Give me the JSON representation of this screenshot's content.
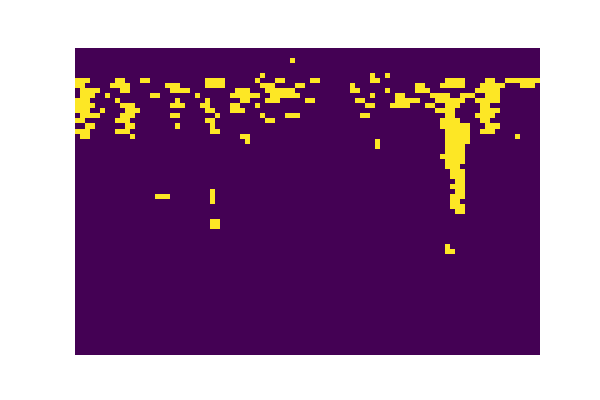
{
  "chart_data": {
    "type": "heatmap",
    "tick_labels": false,
    "xlim": [
      0,
      93
    ],
    "ylim": [
      0,
      61
    ],
    "zlim": [
      0,
      1
    ],
    "colors": [
      "#440154",
      "#fde725"
    ],
    "runs": [
      [
        2,
        43,
        44,
        1
      ],
      [
        5,
        37,
        38,
        1
      ],
      [
        5,
        59,
        60,
        1
      ],
      [
        5,
        62,
        63,
        1
      ],
      [
        6,
        0,
        3,
        1
      ],
      [
        6,
        8,
        10,
        1
      ],
      [
        6,
        13,
        15,
        1
      ],
      [
        6,
        26,
        30,
        1
      ],
      [
        6,
        36,
        37,
        1
      ],
      [
        6,
        40,
        42,
        1
      ],
      [
        6,
        47,
        49,
        1
      ],
      [
        6,
        59,
        61,
        1
      ],
      [
        6,
        74,
        78,
        1
      ],
      [
        6,
        82,
        84,
        1
      ],
      [
        6,
        86,
        93,
        1
      ],
      [
        7,
        0,
        2,
        1
      ],
      [
        7,
        7,
        11,
        1
      ],
      [
        7,
        18,
        21,
        1
      ],
      [
        7,
        26,
        30,
        1
      ],
      [
        7,
        37,
        40,
        1
      ],
      [
        7,
        44,
        46,
        1
      ],
      [
        7,
        55,
        56,
        1
      ],
      [
        7,
        68,
        70,
        1
      ],
      [
        7,
        73,
        78,
        1
      ],
      [
        7,
        81,
        86,
        1
      ],
      [
        7,
        89,
        92,
        1
      ],
      [
        8,
        1,
        5,
        1
      ],
      [
        8,
        9,
        11,
        1
      ],
      [
        8,
        19,
        23,
        1
      ],
      [
        8,
        32,
        35,
        1
      ],
      [
        8,
        38,
        44,
        1
      ],
      [
        8,
        55,
        57,
        1
      ],
      [
        8,
        62,
        63,
        1
      ],
      [
        8,
        68,
        71,
        1
      ],
      [
        8,
        80,
        85,
        1
      ],
      [
        9,
        1,
        4,
        1
      ],
      [
        9,
        6,
        7,
        1
      ],
      [
        9,
        15,
        17,
        1
      ],
      [
        9,
        24,
        25,
        1
      ],
      [
        9,
        31,
        37,
        1
      ],
      [
        9,
        39,
        45,
        1
      ],
      [
        9,
        59,
        60,
        1
      ],
      [
        9,
        64,
        66,
        1
      ],
      [
        9,
        71,
        75,
        1
      ],
      [
        9,
        77,
        80,
        1
      ],
      [
        9,
        82,
        85,
        1
      ],
      [
        10,
        0,
        3,
        1
      ],
      [
        10,
        8,
        9,
        1
      ],
      [
        10,
        20,
        21,
        1
      ],
      [
        10,
        26,
        27,
        1
      ],
      [
        10,
        33,
        35,
        1
      ],
      [
        10,
        38,
        41,
        1
      ],
      [
        10,
        46,
        48,
        1
      ],
      [
        10,
        56,
        58,
        1
      ],
      [
        10,
        64,
        69,
        1
      ],
      [
        10,
        72,
        78,
        1
      ],
      [
        10,
        80,
        85,
        1
      ],
      [
        11,
        0,
        4,
        1
      ],
      [
        11,
        9,
        12,
        1
      ],
      [
        11,
        19,
        22,
        1
      ],
      [
        11,
        25,
        27,
        1
      ],
      [
        11,
        31,
        33,
        1
      ],
      [
        11,
        36,
        37,
        1
      ],
      [
        11,
        58,
        60,
        1
      ],
      [
        11,
        63,
        67,
        1
      ],
      [
        11,
        70,
        72,
        1
      ],
      [
        11,
        74,
        77,
        1
      ],
      [
        11,
        81,
        83,
        1
      ],
      [
        12,
        0,
        3,
        1
      ],
      [
        12,
        5,
        6,
        1
      ],
      [
        12,
        10,
        13,
        1
      ],
      [
        12,
        26,
        28,
        1
      ],
      [
        12,
        31,
        34,
        1
      ],
      [
        12,
        72,
        76,
        1
      ],
      [
        12,
        81,
        85,
        1
      ],
      [
        13,
        1,
        5,
        1
      ],
      [
        13,
        9,
        12,
        1
      ],
      [
        13,
        19,
        21,
        1
      ],
      [
        13,
        28,
        29,
        1
      ],
      [
        13,
        37,
        38,
        1
      ],
      [
        13,
        42,
        45,
        1
      ],
      [
        13,
        57,
        59,
        1
      ],
      [
        13,
        74,
        76,
        1
      ],
      [
        13,
        80,
        84,
        1
      ],
      [
        14,
        0,
        2,
        1
      ],
      [
        14,
        8,
        11,
        1
      ],
      [
        14,
        26,
        28,
        1
      ],
      [
        14,
        38,
        40,
        1
      ],
      [
        14,
        73,
        77,
        1
      ],
      [
        14,
        81,
        83,
        1
      ],
      [
        15,
        2,
        4,
        1
      ],
      [
        15,
        10,
        12,
        1
      ],
      [
        15,
        20,
        21,
        1
      ],
      [
        15,
        27,
        28,
        1
      ],
      [
        15,
        73,
        79,
        1
      ],
      [
        15,
        82,
        85,
        1
      ],
      [
        16,
        0,
        3,
        1
      ],
      [
        16,
        8,
        11,
        1
      ],
      [
        16,
        27,
        29,
        1
      ],
      [
        16,
        74,
        79,
        1
      ],
      [
        16,
        81,
        84,
        1
      ],
      [
        17,
        1,
        3,
        1
      ],
      [
        17,
        11,
        12,
        1
      ],
      [
        17,
        33,
        35,
        1
      ],
      [
        17,
        74,
        79,
        1
      ],
      [
        17,
        88,
        89,
        1
      ],
      [
        18,
        34,
        35,
        1
      ],
      [
        18,
        60,
        61,
        1
      ],
      [
        18,
        74,
        79,
        1
      ],
      [
        19,
        60,
        61,
        1
      ],
      [
        19,
        74,
        78,
        1
      ],
      [
        20,
        74,
        78,
        1
      ],
      [
        21,
        73,
        78,
        1
      ],
      [
        22,
        74,
        78,
        1
      ],
      [
        23,
        74,
        77,
        1
      ],
      [
        24,
        75,
        78,
        1
      ],
      [
        25,
        75,
        78,
        1
      ],
      [
        26,
        76,
        78,
        1
      ],
      [
        27,
        75,
        78,
        1
      ],
      [
        28,
        27,
        28,
        1
      ],
      [
        28,
        76,
        78,
        1
      ],
      [
        29,
        16,
        19,
        1
      ],
      [
        29,
        27,
        28,
        1
      ],
      [
        29,
        75,
        78,
        1
      ],
      [
        30,
        27,
        28,
        1
      ],
      [
        30,
        75,
        77,
        1
      ],
      [
        31,
        75,
        78,
        1
      ],
      [
        32,
        76,
        78,
        1
      ],
      [
        34,
        27,
        29,
        1
      ],
      [
        35,
        27,
        29,
        1
      ],
      [
        39,
        74,
        75,
        1
      ],
      [
        40,
        74,
        76,
        1
      ]
    ]
  }
}
